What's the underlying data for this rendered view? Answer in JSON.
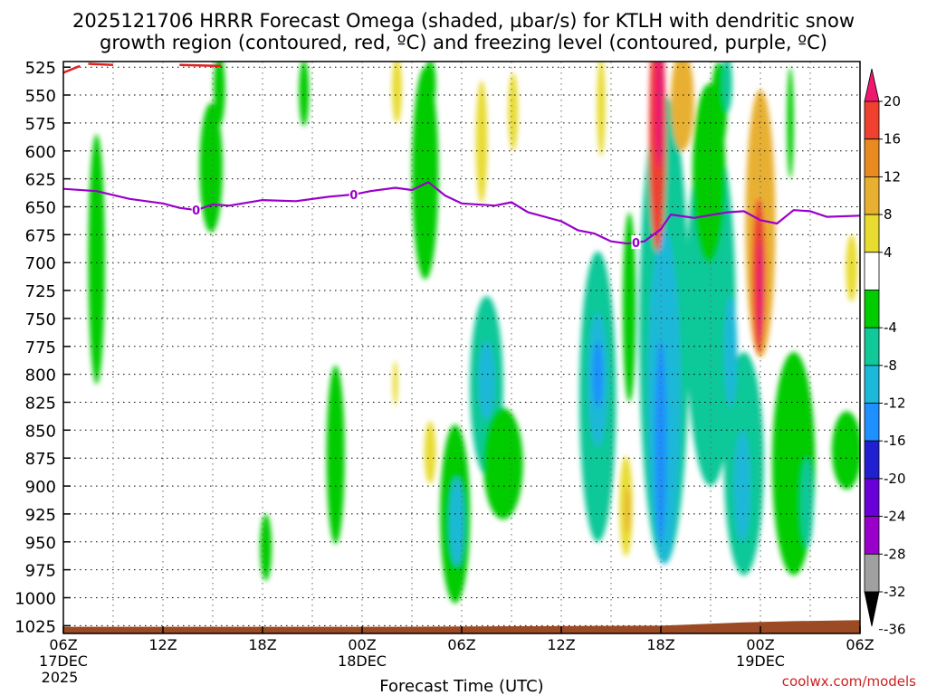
{
  "chart_data": {
    "type": "heatmap",
    "title_line1": "2025121706 HRRR Forecast Omega (shaded, µbar/s) for KTLH with dendritic snow",
    "title_line2": "growth region (contoured, red, ºC) and freezing level (contoured, purple, ºC)",
    "xlabel": "Forecast Time (UTC)",
    "x_range_hours": [
      0,
      48
    ],
    "x_ticks": [
      {
        "hour": 0,
        "label": "06Z",
        "sub1": "17DEC",
        "sub2": "2025"
      },
      {
        "hour": 6,
        "label": "12Z",
        "sub1": "",
        "sub2": ""
      },
      {
        "hour": 12,
        "label": "18Z",
        "sub1": "",
        "sub2": ""
      },
      {
        "hour": 18,
        "label": "00Z",
        "sub1": "18DEC",
        "sub2": ""
      },
      {
        "hour": 24,
        "label": "06Z",
        "sub1": "",
        "sub2": ""
      },
      {
        "hour": 30,
        "label": "12Z",
        "sub1": "",
        "sub2": ""
      },
      {
        "hour": 36,
        "label": "18Z",
        "sub1": "",
        "sub2": ""
      },
      {
        "hour": 42,
        "label": "00Z",
        "sub1": "19DEC",
        "sub2": ""
      },
      {
        "hour": 48,
        "label": "06Z",
        "sub1": "",
        "sub2": ""
      }
    ],
    "y_range_hpa": [
      1032,
      520
    ],
    "y_ticks": [
      525,
      550,
      575,
      600,
      625,
      650,
      675,
      700,
      725,
      750,
      775,
      800,
      825,
      850,
      875,
      900,
      925,
      950,
      975,
      1000,
      1025
    ],
    "colorbar_levels": [
      -36,
      -32,
      -28,
      -24,
      -20,
      -16,
      -12,
      -8,
      -4,
      4,
      8,
      12,
      16,
      20
    ],
    "colorbar_label_values": [
      20,
      16,
      12,
      8,
      4,
      -4,
      -8,
      -12,
      -16,
      -20,
      -24,
      -28,
      -32,
      -36
    ],
    "colorbar_colors": [
      {
        "lo": -40,
        "hi": -36,
        "color": "#000000"
      },
      {
        "lo": -36,
        "hi": -32,
        "color": "#a0a0a0"
      },
      {
        "lo": -32,
        "hi": -28,
        "color": "#9900cc"
      },
      {
        "lo": -28,
        "hi": -24,
        "color": "#6a00d8"
      },
      {
        "lo": -24,
        "hi": -20,
        "color": "#2020d0"
      },
      {
        "lo": -20,
        "hi": -16,
        "color": "#1e90ff"
      },
      {
        "lo": -16,
        "hi": -12,
        "color": "#1cb8d8"
      },
      {
        "lo": -12,
        "hi": -8,
        "color": "#10c898"
      },
      {
        "lo": -8,
        "hi": -4,
        "color": "#00cc00"
      },
      {
        "lo": -4,
        "hi": 4,
        "color": "#ffffff"
      },
      {
        "lo": 4,
        "hi": 8,
        "color": "#e8dc30"
      },
      {
        "lo": 8,
        "hi": 12,
        "color": "#e8b030"
      },
      {
        "lo": 12,
        "hi": 16,
        "color": "#e88a20"
      },
      {
        "lo": 16,
        "hi": 20,
        "color": "#f04030"
      },
      {
        "lo": 20,
        "hi": 24,
        "color": "#f0186e"
      }
    ],
    "freezing_level": {
      "color": "#9900cc",
      "label": "0",
      "label_hours": [
        8,
        17.5,
        34.5
      ],
      "points": [
        [
          0,
          634
        ],
        [
          2,
          636
        ],
        [
          4,
          643
        ],
        [
          6,
          647
        ],
        [
          7,
          651
        ],
        [
          8,
          653
        ],
        [
          9,
          648
        ],
        [
          10,
          649
        ],
        [
          12,
          644
        ],
        [
          14,
          645
        ],
        [
          16,
          641
        ],
        [
          17.5,
          639
        ],
        [
          18.5,
          636
        ],
        [
          20,
          633
        ],
        [
          21,
          635
        ],
        [
          22,
          628
        ],
        [
          23,
          640
        ],
        [
          24,
          647
        ],
        [
          26,
          649
        ],
        [
          27,
          646
        ],
        [
          28,
          655
        ],
        [
          30,
          663
        ],
        [
          31,
          671
        ],
        [
          32,
          674
        ],
        [
          33,
          681
        ],
        [
          34,
          683
        ],
        [
          35,
          681
        ],
        [
          36,
          670
        ],
        [
          36.6,
          657
        ],
        [
          38,
          660
        ],
        [
          40,
          655
        ],
        [
          41,
          654
        ],
        [
          42,
          662
        ],
        [
          43,
          665
        ],
        [
          44,
          653
        ],
        [
          45,
          654
        ],
        [
          46,
          659
        ],
        [
          48,
          658
        ]
      ]
    },
    "dendritic_region": {
      "color": "#e02020",
      "segments": [
        [
          [
            0,
            530
          ],
          [
            1,
            524
          ]
        ],
        [
          [
            1.5,
            522
          ],
          [
            3,
            523
          ]
        ],
        [
          [
            7,
            523
          ],
          [
            9.5,
            524
          ]
        ]
      ]
    },
    "ground": {
      "color": "#9c4a24",
      "points": [
        [
          0,
          1026
        ],
        [
          20,
          1026
        ],
        [
          36,
          1025
        ],
        [
          41,
          1022
        ],
        [
          44,
          1021
        ],
        [
          48,
          1020
        ]
      ]
    },
    "omega_blobs": [
      {
        "hr": 2,
        "p": 697,
        "rx": 0.5,
        "rp": 112,
        "v": -7
      },
      {
        "hr": 8.9,
        "p": 615,
        "rx": 0.7,
        "rp": 58,
        "v": -7
      },
      {
        "hr": 9.4,
        "p": 545,
        "rx": 0.35,
        "rp": 32,
        "v": -6
      },
      {
        "hr": 14.5,
        "p": 548,
        "rx": 0.3,
        "rp": 30,
        "v": -6
      },
      {
        "hr": 21.8,
        "p": 620,
        "rx": 0.8,
        "rp": 95,
        "v": -7
      },
      {
        "hr": 22.1,
        "p": 540,
        "rx": 0.35,
        "rp": 22,
        "v": -6
      },
      {
        "hr": 16.4,
        "p": 872,
        "rx": 0.55,
        "rp": 80,
        "v": -7
      },
      {
        "hr": 12.2,
        "p": 955,
        "rx": 0.35,
        "rp": 30,
        "v": -6
      },
      {
        "hr": 20.1,
        "p": 545,
        "rx": 0.3,
        "rp": 30,
        "v": 5
      },
      {
        "hr": 20.0,
        "p": 808,
        "rx": 0.15,
        "rp": 20,
        "v": 5
      },
      {
        "hr": 22.1,
        "p": 870,
        "rx": 0.35,
        "rp": 28,
        "v": 5
      },
      {
        "hr": 25.2,
        "p": 592,
        "rx": 0.35,
        "rp": 55,
        "v": 5
      },
      {
        "hr": 27.1,
        "p": 565,
        "rx": 0.3,
        "rp": 35,
        "v": 5
      },
      {
        "hr": 23.6,
        "p": 925,
        "rx": 0.9,
        "rp": 80,
        "v": -8
      },
      {
        "hr": 23.7,
        "p": 932,
        "rx": 0.45,
        "rp": 40,
        "v": -13
      },
      {
        "hr": 25.5,
        "p": 810,
        "rx": 1.0,
        "rp": 80,
        "v": -9
      },
      {
        "hr": 25.5,
        "p": 805,
        "rx": 0.5,
        "rp": 35,
        "v": -13
      },
      {
        "hr": 26.5,
        "p": 880,
        "rx": 1.2,
        "rp": 50,
        "v": -7
      },
      {
        "hr": 32.2,
        "p": 820,
        "rx": 1.1,
        "rp": 130,
        "v": -9
      },
      {
        "hr": 32.2,
        "p": 805,
        "rx": 0.6,
        "rp": 60,
        "v": -14
      },
      {
        "hr": 32.2,
        "p": 800,
        "rx": 0.3,
        "rp": 30,
        "v": -20
      },
      {
        "hr": 34.1,
        "p": 740,
        "rx": 0.4,
        "rp": 85,
        "v": -6
      },
      {
        "hr": 33.9,
        "p": 918,
        "rx": 0.4,
        "rp": 45,
        "v": 5
      },
      {
        "hr": 34.0,
        "p": 922,
        "rx": 0.15,
        "rp": 20,
        "v": 9
      },
      {
        "hr": 32.4,
        "p": 560,
        "rx": 0.25,
        "rp": 45,
        "v": 5
      },
      {
        "hr": 36.2,
        "p": 760,
        "rx": 1.5,
        "rp": 210,
        "v": -9
      },
      {
        "hr": 36.2,
        "p": 820,
        "rx": 1.0,
        "rp": 150,
        "v": -13
      },
      {
        "hr": 36.0,
        "p": 860,
        "rx": 0.35,
        "rp": 90,
        "v": -17
      },
      {
        "hr": 39.0,
        "p": 740,
        "rx": 1.5,
        "rp": 160,
        "v": -10
      },
      {
        "hr": 38.9,
        "p": 620,
        "rx": 1.0,
        "rp": 80,
        "v": -7
      },
      {
        "hr": 41.0,
        "p": 880,
        "rx": 1.2,
        "rp": 100,
        "v": -11
      },
      {
        "hr": 40.9,
        "p": 900,
        "rx": 0.5,
        "rp": 50,
        "v": -16
      },
      {
        "hr": 40.2,
        "p": 780,
        "rx": 0.4,
        "rp": 50,
        "v": -14
      },
      {
        "hr": 39.5,
        "p": 560,
        "rx": 0.5,
        "rp": 40,
        "v": -7
      },
      {
        "hr": 40.0,
        "p": 540,
        "rx": 0.3,
        "rp": 25,
        "v": -12
      },
      {
        "hr": 44.0,
        "p": 880,
        "rx": 1.3,
        "rp": 100,
        "v": -8
      },
      {
        "hr": 44.8,
        "p": 915,
        "rx": 0.4,
        "rp": 40,
        "v": -11
      },
      {
        "hr": 47.2,
        "p": 868,
        "rx": 0.9,
        "rp": 35,
        "v": -6
      },
      {
        "hr": 35.8,
        "p": 580,
        "rx": 0.5,
        "rp": 110,
        "v": 18
      },
      {
        "hr": 35.9,
        "p": 560,
        "rx": 0.3,
        "rp": 55,
        "v": 22
      },
      {
        "hr": 37.3,
        "p": 555,
        "rx": 0.7,
        "rp": 45,
        "v": 10
      },
      {
        "hr": 42.0,
        "p": 665,
        "rx": 0.9,
        "rp": 120,
        "v": 9
      },
      {
        "hr": 41.9,
        "p": 712,
        "rx": 0.4,
        "rp": 70,
        "v": 18
      },
      {
        "hr": 42.0,
        "p": 725,
        "rx": 0.2,
        "rp": 45,
        "v": 22
      },
      {
        "hr": 43.8,
        "p": 575,
        "rx": 0.2,
        "rp": 50,
        "v": -6
      },
      {
        "hr": 47.5,
        "p": 705,
        "rx": 0.35,
        "rp": 30,
        "v": 5
      }
    ],
    "credit": "coolwx.com/models"
  }
}
